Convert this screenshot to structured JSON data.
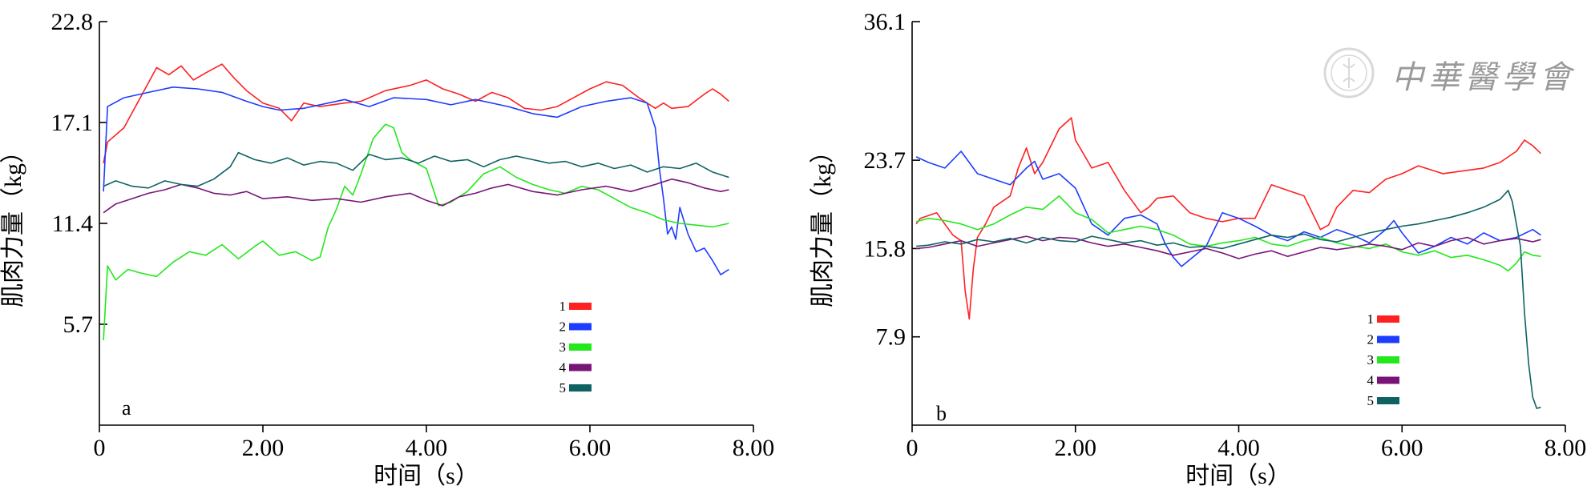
{
  "watermark": {
    "text": "中華醫學會",
    "icon": "society-seal-icon"
  },
  "chart_data": [
    {
      "type": "line",
      "panel_label": "a",
      "xlabel": "时间（s）",
      "ylabel": "肌肉力量（kg）",
      "xlim": [
        0,
        8
      ],
      "ylim": [
        0,
        22.8
      ],
      "x_ticks": [
        0,
        2,
        4,
        6,
        8
      ],
      "x_tick_labels": [
        "0",
        "2.00",
        "4.00",
        "6.00",
        "8.00"
      ],
      "y_ticks": [
        5.7,
        11.4,
        17.1,
        22.8
      ],
      "y_tick_labels": [
        "5.7",
        "11.4",
        "17.1",
        "22.8"
      ],
      "legend_position": "lower-right",
      "series": [
        {
          "name": "1",
          "color": "#ff2020",
          "x": [
            0.05,
            0.1,
            0.3,
            0.5,
            0.7,
            0.85,
            1.0,
            1.15,
            1.3,
            1.5,
            1.65,
            1.8,
            2.0,
            2.2,
            2.35,
            2.5,
            2.7,
            3.0,
            3.2,
            3.5,
            3.8,
            4.0,
            4.2,
            4.4,
            4.6,
            4.8,
            5.0,
            5.2,
            5.4,
            5.6,
            5.8,
            6.0,
            6.2,
            6.4,
            6.6,
            6.8,
            6.9,
            7.0,
            7.2,
            7.4,
            7.5,
            7.6,
            7.7
          ],
          "y": [
            14.8,
            16.0,
            16.8,
            18.5,
            20.2,
            19.8,
            20.3,
            19.5,
            19.9,
            20.4,
            19.6,
            18.9,
            18.2,
            17.9,
            17.2,
            18.2,
            18.0,
            18.2,
            18.3,
            18.9,
            19.2,
            19.5,
            19.0,
            18.7,
            18.3,
            18.8,
            18.5,
            17.9,
            17.8,
            18.0,
            18.5,
            19.0,
            19.4,
            19.2,
            18.5,
            17.9,
            18.2,
            17.9,
            18.0,
            18.7,
            19.0,
            18.7,
            18.3
          ]
        },
        {
          "name": "2",
          "color": "#1e3cff",
          "x": [
            0.05,
            0.1,
            0.3,
            0.6,
            0.9,
            1.2,
            1.5,
            1.8,
            2.0,
            2.2,
            2.5,
            2.8,
            3.0,
            3.3,
            3.6,
            4.0,
            4.3,
            4.6,
            5.0,
            5.3,
            5.6,
            5.9,
            6.2,
            6.5,
            6.7,
            6.8,
            6.85,
            6.9,
            6.95,
            7.0,
            7.05,
            7.1,
            7.2,
            7.3,
            7.4,
            7.5,
            7.6,
            7.7
          ],
          "y": [
            13.2,
            18.0,
            18.5,
            18.8,
            19.1,
            19.0,
            18.8,
            18.3,
            18.0,
            17.8,
            17.9,
            18.2,
            18.4,
            18.0,
            18.5,
            18.4,
            18.1,
            18.4,
            18.0,
            17.6,
            17.4,
            18.0,
            18.3,
            18.5,
            18.2,
            16.8,
            14.5,
            12.8,
            10.8,
            11.2,
            10.5,
            12.3,
            10.8,
            9.8,
            10.0,
            9.3,
            8.5,
            8.8
          ]
        },
        {
          "name": "3",
          "color": "#22e81c",
          "x": [
            0.05,
            0.1,
            0.2,
            0.35,
            0.5,
            0.7,
            0.9,
            1.1,
            1.3,
            1.5,
            1.7,
            1.9,
            2.0,
            2.2,
            2.4,
            2.6,
            2.7,
            2.8,
            2.9,
            3.0,
            3.1,
            3.2,
            3.35,
            3.5,
            3.6,
            3.7,
            3.8,
            4.0,
            4.15,
            4.3,
            4.5,
            4.7,
            4.9,
            5.1,
            5.3,
            5.5,
            5.7,
            5.9,
            6.1,
            6.3,
            6.5,
            6.7,
            6.9,
            7.1,
            7.3,
            7.5,
            7.7
          ],
          "y": [
            4.8,
            9.0,
            8.2,
            8.8,
            8.6,
            8.4,
            9.2,
            9.8,
            9.6,
            10.2,
            9.4,
            10.1,
            10.4,
            9.6,
            9.8,
            9.3,
            9.5,
            11.2,
            12.2,
            13.5,
            13.0,
            14.2,
            16.2,
            17.0,
            16.8,
            15.4,
            15.0,
            14.5,
            12.4,
            12.6,
            13.2,
            14.2,
            14.6,
            14.0,
            13.6,
            13.3,
            13.1,
            13.5,
            13.3,
            12.8,
            12.3,
            12.0,
            11.6,
            11.4,
            11.3,
            11.2,
            11.4
          ]
        },
        {
          "name": "4",
          "color": "#781478",
          "x": [
            0.05,
            0.2,
            0.4,
            0.6,
            0.8,
            1.0,
            1.2,
            1.4,
            1.6,
            1.8,
            2.0,
            2.3,
            2.6,
            2.9,
            3.2,
            3.5,
            3.8,
            4.0,
            4.2,
            4.4,
            4.6,
            4.8,
            5.0,
            5.3,
            5.6,
            5.9,
            6.2,
            6.5,
            6.8,
            7.0,
            7.2,
            7.4,
            7.6,
            7.7
          ],
          "y": [
            12.0,
            12.5,
            12.8,
            13.1,
            13.3,
            13.6,
            13.4,
            13.1,
            13.0,
            13.2,
            12.8,
            12.9,
            12.7,
            12.8,
            12.6,
            12.9,
            13.1,
            12.7,
            12.4,
            12.9,
            13.1,
            13.4,
            13.6,
            13.2,
            13.0,
            13.3,
            13.5,
            13.2,
            13.6,
            13.9,
            13.7,
            13.4,
            13.2,
            13.3
          ]
        },
        {
          "name": "5",
          "color": "#0e6262",
          "x": [
            0.05,
            0.2,
            0.4,
            0.6,
            0.8,
            1.0,
            1.2,
            1.4,
            1.6,
            1.7,
            1.9,
            2.1,
            2.3,
            2.5,
            2.7,
            2.9,
            3.1,
            3.3,
            3.5,
            3.7,
            3.9,
            4.1,
            4.3,
            4.5,
            4.7,
            4.9,
            5.1,
            5.3,
            5.5,
            5.7,
            5.9,
            6.1,
            6.3,
            6.5,
            6.7,
            6.9,
            7.1,
            7.3,
            7.5,
            7.7
          ],
          "y": [
            13.5,
            13.8,
            13.5,
            13.4,
            13.8,
            13.6,
            13.5,
            13.9,
            14.6,
            15.4,
            15.0,
            14.8,
            15.1,
            14.7,
            14.9,
            14.8,
            14.4,
            15.3,
            15.0,
            15.1,
            14.8,
            15.2,
            14.9,
            15.0,
            14.6,
            15.0,
            15.2,
            15.0,
            14.8,
            14.9,
            14.6,
            14.8,
            14.5,
            14.7,
            14.3,
            14.6,
            14.5,
            14.8,
            14.3,
            14.0
          ]
        }
      ]
    },
    {
      "type": "line",
      "panel_label": "b",
      "xlabel": "时间（s）",
      "ylabel": "肌肉力量（kg）",
      "xlim": [
        0,
        8
      ],
      "ylim": [
        0,
        36.1
      ],
      "x_ticks": [
        0,
        2,
        4,
        6,
        8
      ],
      "x_tick_labels": [
        "0",
        "2.00",
        "4.00",
        "6.00",
        "8.00"
      ],
      "y_ticks": [
        7.9,
        15.8,
        23.7,
        36.1
      ],
      "y_tick_labels": [
        "7.9",
        "15.8",
        "23.7",
        "36.1"
      ],
      "legend_position": "lower-right",
      "series": [
        {
          "name": "1",
          "color": "#ff2020",
          "x": [
            0.05,
            0.1,
            0.3,
            0.5,
            0.6,
            0.65,
            0.7,
            0.75,
            0.8,
            0.9,
            1.0,
            1.2,
            1.3,
            1.4,
            1.5,
            1.6,
            1.8,
            1.95,
            2.0,
            2.2,
            2.4,
            2.6,
            2.8,
            2.9,
            3.0,
            3.2,
            3.4,
            3.6,
            3.8,
            4.0,
            4.2,
            4.4,
            4.6,
            4.8,
            5.0,
            5.1,
            5.2,
            5.4,
            5.6,
            5.8,
            6.0,
            6.2,
            6.5,
            6.8,
            7.0,
            7.2,
            7.4,
            7.5,
            7.6,
            7.7
          ],
          "y": [
            18.0,
            18.5,
            19.0,
            17.0,
            16.5,
            12.0,
            9.5,
            14.0,
            16.8,
            18.0,
            19.5,
            20.5,
            23.0,
            24.8,
            22.5,
            23.5,
            26.5,
            27.5,
            25.5,
            23.0,
            23.5,
            21.0,
            19.0,
            19.5,
            20.3,
            20.5,
            19.0,
            18.5,
            18.2,
            18.5,
            18.5,
            21.5,
            21.0,
            20.5,
            17.5,
            17.9,
            19.5,
            21.0,
            20.8,
            22.0,
            22.5,
            23.2,
            22.5,
            22.8,
            23.0,
            23.5,
            24.5,
            25.5,
            25.0,
            24.3
          ]
        },
        {
          "name": "2",
          "color": "#1e3cff",
          "x": [
            0.05,
            0.2,
            0.4,
            0.6,
            0.8,
            1.0,
            1.2,
            1.4,
            1.5,
            1.6,
            1.8,
            2.0,
            2.2,
            2.4,
            2.6,
            2.8,
            3.0,
            3.1,
            3.2,
            3.3,
            3.4,
            3.6,
            3.8,
            4.0,
            4.2,
            4.4,
            4.6,
            4.8,
            5.0,
            5.2,
            5.4,
            5.6,
            5.8,
            5.9,
            6.0,
            6.2,
            6.4,
            6.6,
            6.8,
            7.0,
            7.2,
            7.4,
            7.6,
            7.7
          ],
          "y": [
            24.0,
            23.5,
            23.0,
            24.5,
            22.5,
            22.0,
            21.5,
            23.0,
            23.6,
            22.0,
            22.5,
            21.2,
            18.0,
            17.0,
            18.5,
            18.8,
            18.0,
            16.2,
            15.0,
            14.2,
            14.8,
            16.0,
            19.0,
            18.5,
            17.8,
            17.0,
            16.5,
            17.3,
            16.8,
            17.5,
            17.0,
            16.3,
            17.5,
            18.3,
            17.2,
            15.4,
            16.0,
            16.8,
            16.2,
            17.2,
            16.5,
            16.8,
            17.5,
            17.0
          ]
        },
        {
          "name": "3",
          "color": "#22e81c",
          "x": [
            0.05,
            0.2,
            0.4,
            0.6,
            0.8,
            1.0,
            1.2,
            1.4,
            1.6,
            1.8,
            2.0,
            2.2,
            2.4,
            2.6,
            2.8,
            3.0,
            3.2,
            3.4,
            3.6,
            3.8,
            4.0,
            4.2,
            4.4,
            4.6,
            4.8,
            5.0,
            5.2,
            5.4,
            5.6,
            5.8,
            6.0,
            6.2,
            6.4,
            6.6,
            6.8,
            7.0,
            7.2,
            7.3,
            7.4,
            7.5,
            7.6,
            7.7
          ],
          "y": [
            18.2,
            18.5,
            18.3,
            18.0,
            17.5,
            18.0,
            18.8,
            19.5,
            19.3,
            20.5,
            19.0,
            18.4,
            17.2,
            17.5,
            17.8,
            17.5,
            17.0,
            16.2,
            16.0,
            16.3,
            16.5,
            16.8,
            16.2,
            16.0,
            16.5,
            16.8,
            16.3,
            16.0,
            15.8,
            16.2,
            15.5,
            15.2,
            15.6,
            15.0,
            15.2,
            14.8,
            14.3,
            13.8,
            14.5,
            15.5,
            15.2,
            15.1
          ]
        },
        {
          "name": "4",
          "color": "#781478",
          "x": [
            0.05,
            0.2,
            0.4,
            0.6,
            0.8,
            1.0,
            1.2,
            1.4,
            1.6,
            1.8,
            2.0,
            2.2,
            2.4,
            2.6,
            2.8,
            3.0,
            3.2,
            3.4,
            3.6,
            3.8,
            4.0,
            4.2,
            4.4,
            4.6,
            4.8,
            5.0,
            5.2,
            5.4,
            5.6,
            5.8,
            6.0,
            6.2,
            6.4,
            6.6,
            6.8,
            7.0,
            7.2,
            7.4,
            7.6,
            7.7
          ],
          "y": [
            15.8,
            15.9,
            16.2,
            16.5,
            16.0,
            16.3,
            16.6,
            16.9,
            16.5,
            16.8,
            16.7,
            16.3,
            16.0,
            16.2,
            15.9,
            15.6,
            15.2,
            15.5,
            15.8,
            15.4,
            14.9,
            15.3,
            15.6,
            15.1,
            15.5,
            15.9,
            15.7,
            15.9,
            16.2,
            16.0,
            15.7,
            16.3,
            16.0,
            16.5,
            16.8,
            16.2,
            16.5,
            16.7,
            16.4,
            16.6
          ]
        },
        {
          "name": "5",
          "color": "#0e6262",
          "x": [
            0.05,
            0.2,
            0.4,
            0.6,
            0.8,
            1.0,
            1.2,
            1.4,
            1.6,
            1.8,
            2.0,
            2.2,
            2.4,
            2.6,
            2.8,
            3.0,
            3.2,
            3.4,
            3.6,
            3.8,
            4.0,
            4.2,
            4.4,
            4.6,
            4.8,
            5.0,
            5.2,
            5.4,
            5.6,
            5.8,
            6.0,
            6.2,
            6.4,
            6.6,
            6.8,
            7.0,
            7.2,
            7.3,
            7.35,
            7.45,
            7.5,
            7.55,
            7.6,
            7.65,
            7.7
          ],
          "y": [
            16.0,
            16.1,
            16.4,
            16.2,
            16.6,
            16.4,
            16.7,
            16.3,
            16.8,
            16.5,
            16.4,
            16.9,
            16.6,
            16.3,
            16.5,
            16.1,
            16.3,
            15.9,
            16.0,
            15.8,
            16.2,
            16.6,
            17.0,
            16.8,
            17.1,
            16.6,
            16.4,
            16.8,
            17.2,
            17.5,
            17.8,
            18.0,
            18.3,
            18.6,
            19.0,
            19.5,
            20.2,
            21.0,
            20.0,
            16.0,
            10.0,
            5.5,
            2.5,
            1.5,
            1.6
          ]
        }
      ]
    }
  ]
}
